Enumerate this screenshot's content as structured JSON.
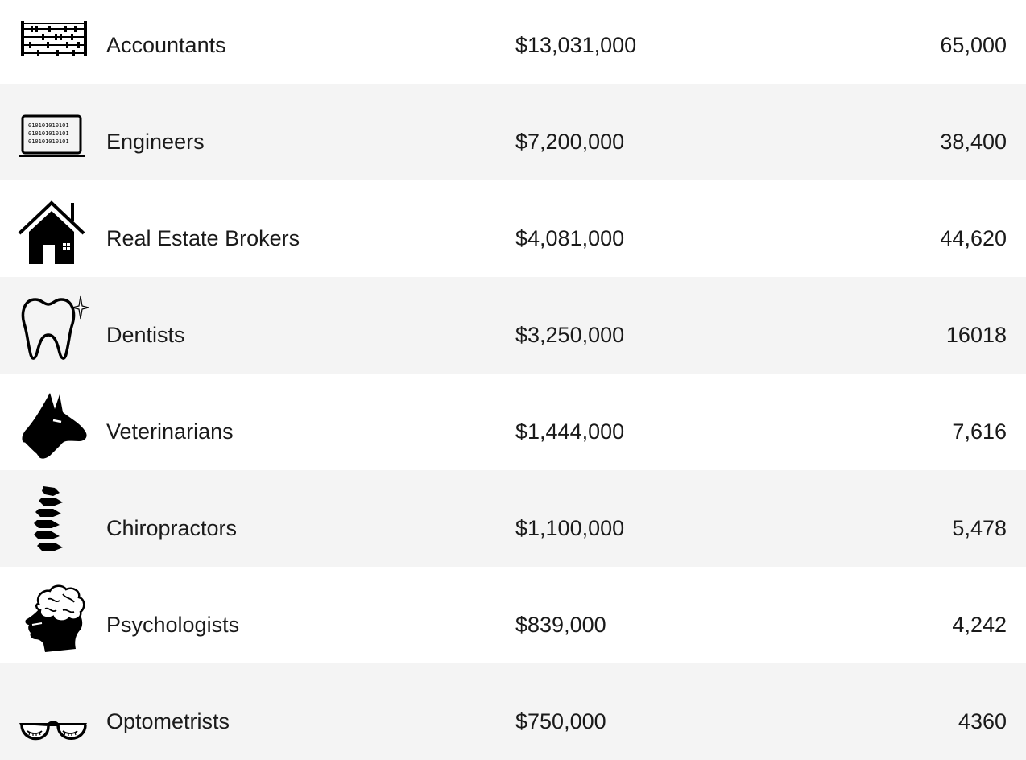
{
  "rows": [
    {
      "name": "Accountants",
      "amount": "$13,031,000",
      "count": "65,000",
      "icon": "abacus-icon"
    },
    {
      "name": "Engineers",
      "amount": "$7,200,000",
      "count": "38,400",
      "icon": "laptop-binary-icon"
    },
    {
      "name": "Real Estate Brokers",
      "amount": "$4,081,000",
      "count": "44,620",
      "icon": "house-icon"
    },
    {
      "name": "Dentists",
      "amount": "$3,250,000",
      "count": "16018",
      "icon": "tooth-icon"
    },
    {
      "name": "Veterinarians",
      "amount": "$1,444,000",
      "count": "7,616",
      "icon": "dog-head-icon"
    },
    {
      "name": "Chiropractors",
      "amount": "$1,100,000",
      "count": "5,478",
      "icon": "spine-icon"
    },
    {
      "name": "Psychologists",
      "amount": "$839,000",
      "count": "4,242",
      "icon": "head-brain-icon"
    },
    {
      "name": "Optometrists",
      "amount": "$750,000",
      "count": "4360",
      "icon": "glasses-icon"
    }
  ]
}
